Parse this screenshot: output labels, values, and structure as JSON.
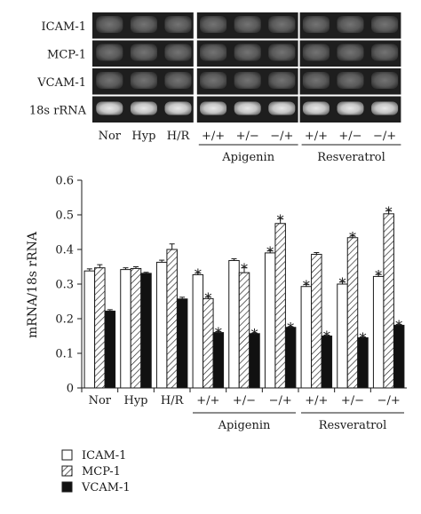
{
  "gel": {
    "rows": [
      "ICAM-1",
      "MCP-1",
      "VCAM-1",
      "18s rRNA"
    ],
    "lanes": [
      "Nor",
      "Hyp",
      "H/R",
      "+/+",
      "+/−",
      "−/+",
      "+/+",
      "+/−",
      "−/+"
    ],
    "groups": [
      {
        "label": "Apigenin",
        "lane_span": [
          3,
          5
        ]
      },
      {
        "label": "Resveratrol",
        "lane_span": [
          6,
          8
        ]
      }
    ]
  },
  "chart_data": {
    "type": "bar",
    "ylabel": "mRNA/18s rRNA",
    "ylim": [
      0,
      0.6
    ],
    "yticks": [
      "0",
      "0.1",
      "0.2",
      "0.3",
      "0.4",
      "0.5",
      "0.6"
    ],
    "categories": [
      "Nor",
      "Hyp",
      "H/R",
      "+/+",
      "+/−",
      "−/+",
      "+/+",
      "+/−",
      "−/+"
    ],
    "category_groups": [
      {
        "label": "Apigenin",
        "span": [
          3,
          5
        ]
      },
      {
        "label": "Resveratrol",
        "span": [
          6,
          8
        ]
      }
    ],
    "series": [
      {
        "name": "ICAM-1",
        "fill": "white",
        "values": [
          0.338,
          0.342,
          0.363,
          0.327,
          0.368,
          0.39,
          0.293,
          0.3,
          0.322
        ],
        "errors": [
          0.006,
          0.005,
          0.006,
          0.005,
          0.005,
          0.006,
          0.006,
          0.006,
          0.006
        ],
        "significant": [
          false,
          false,
          false,
          true,
          false,
          true,
          true,
          true,
          true
        ]
      },
      {
        "name": "MCP-1",
        "fill": "hatched",
        "values": [
          0.347,
          0.345,
          0.4,
          0.258,
          0.333,
          0.475,
          0.386,
          0.434,
          0.503
        ],
        "errors": [
          0.009,
          0.005,
          0.016,
          0.005,
          0.014,
          0.014,
          0.005,
          0.005,
          0.009
        ],
        "significant": [
          false,
          false,
          false,
          true,
          true,
          true,
          false,
          true,
          true
        ]
      },
      {
        "name": "VCAM-1",
        "fill": "black",
        "values": [
          0.222,
          0.331,
          0.257,
          0.16,
          0.157,
          0.175,
          0.15,
          0.145,
          0.181
        ],
        "errors": [
          0.004,
          0.003,
          0.005,
          0.003,
          0.002,
          0.002,
          0.002,
          0.002,
          0.002
        ],
        "significant": [
          false,
          false,
          false,
          true,
          true,
          true,
          true,
          true,
          true
        ]
      }
    ],
    "annotation_mark": "*",
    "grid": false,
    "legend": {
      "position": "bottom-left",
      "entries": [
        "ICAM-1",
        "MCP-1",
        "VCAM-1"
      ]
    }
  },
  "colors": {
    "bar_edge": "#1a1a1a",
    "black_bar": "#111111",
    "gel_band": "#9a9a9a",
    "gel_bg": "#1e1e1e"
  }
}
